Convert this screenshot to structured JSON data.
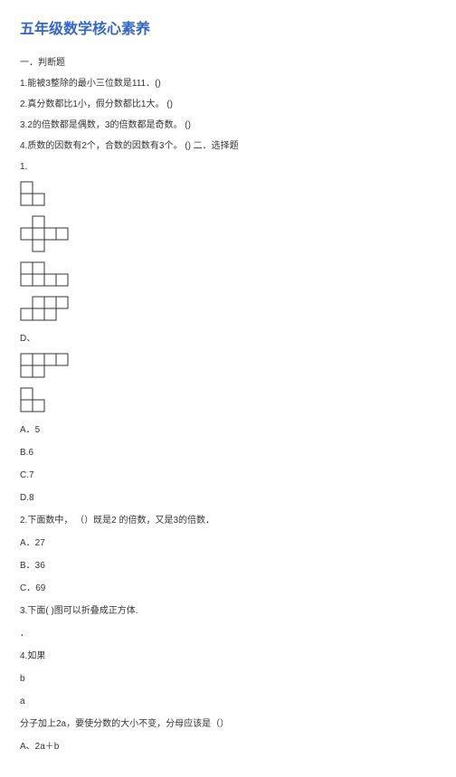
{
  "title": "五年级数学核心素养",
  "section1": {
    "heading": "一．判断题"
  },
  "judge": {
    "q1": "1.能被3整除的最小三位数是111．()",
    "q2": "2.真分数都比1小，假分数都比1大。 ()",
    "q3": "3.2的倍数都是偶数，3的倍数都是奇数。 ()",
    "q4": "4.质数的因数有2个，合数的因数有3个。  () 二．选择题"
  },
  "choice": {
    "q1_num": "1.",
    "q1_optD_label": "D、",
    "q1_A": "A．5",
    "q1_B": "B.6",
    "q1_C": "C.7",
    "q1_D": "D.8",
    "q2": "2.下面数中， （）既是2 的倍数，又是3的倍数．",
    "q2_A": "A．27",
    "q2_B": "B．36",
    "q2_C": "C．69",
    "q3": "3.下面(  )图可以折叠成正方体.",
    "q3_dot": "．",
    "q4": "4.如果",
    "q4_b": "b",
    "q4_a": "a",
    "q4_text": "分子加上2a，要使分数的大小不变，分母应该是（）",
    "q4_A": "A、2a＋b"
  },
  "diagrams": {
    "cell": 13,
    "stroke": "#333333",
    "fill": "#ffffff",
    "d1": {
      "cells": [
        [
          0,
          0
        ],
        [
          0,
          1
        ],
        [
          1,
          1
        ]
      ]
    },
    "d2": {
      "cells": [
        [
          1,
          0
        ],
        [
          0,
          1
        ],
        [
          1,
          1
        ],
        [
          2,
          1
        ],
        [
          3,
          1
        ],
        [
          1,
          2
        ]
      ]
    },
    "d3": {
      "cells": [
        [
          0,
          0
        ],
        [
          1,
          0
        ],
        [
          0,
          1
        ],
        [
          1,
          1
        ],
        [
          2,
          1
        ],
        [
          3,
          1
        ]
      ]
    },
    "d4": {
      "cells": [
        [
          1,
          0
        ],
        [
          2,
          0
        ],
        [
          3,
          0
        ],
        [
          0,
          1
        ],
        [
          1,
          1
        ],
        [
          2,
          1
        ]
      ]
    },
    "d5": {
      "cells": [
        [
          0,
          0
        ],
        [
          1,
          0
        ],
        [
          2,
          0
        ],
        [
          3,
          0
        ],
        [
          0,
          1
        ],
        [
          1,
          1
        ]
      ]
    },
    "d6": {
      "cells": [
        [
          0,
          0
        ],
        [
          0,
          1
        ],
        [
          1,
          1
        ]
      ]
    }
  }
}
